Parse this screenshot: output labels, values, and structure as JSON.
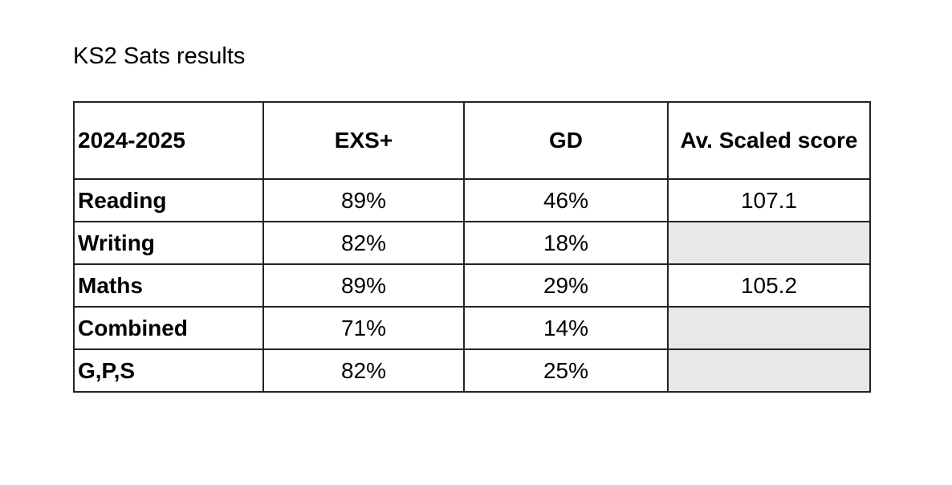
{
  "title": "KS2 Sats results",
  "table": {
    "header": [
      "2024-2025",
      "EXS+",
      "GD",
      "Av. Scaled score"
    ],
    "rows": [
      [
        "Reading",
        "89%",
        "46%",
        "107.1"
      ],
      [
        "Writing",
        "82%",
        "18%",
        null
      ],
      [
        "Maths",
        "89%",
        "29%",
        "105.2"
      ],
      [
        "Combined",
        "71%",
        "14%",
        null
      ],
      [
        "G,P,S",
        "82%",
        "25%",
        null
      ]
    ]
  }
}
